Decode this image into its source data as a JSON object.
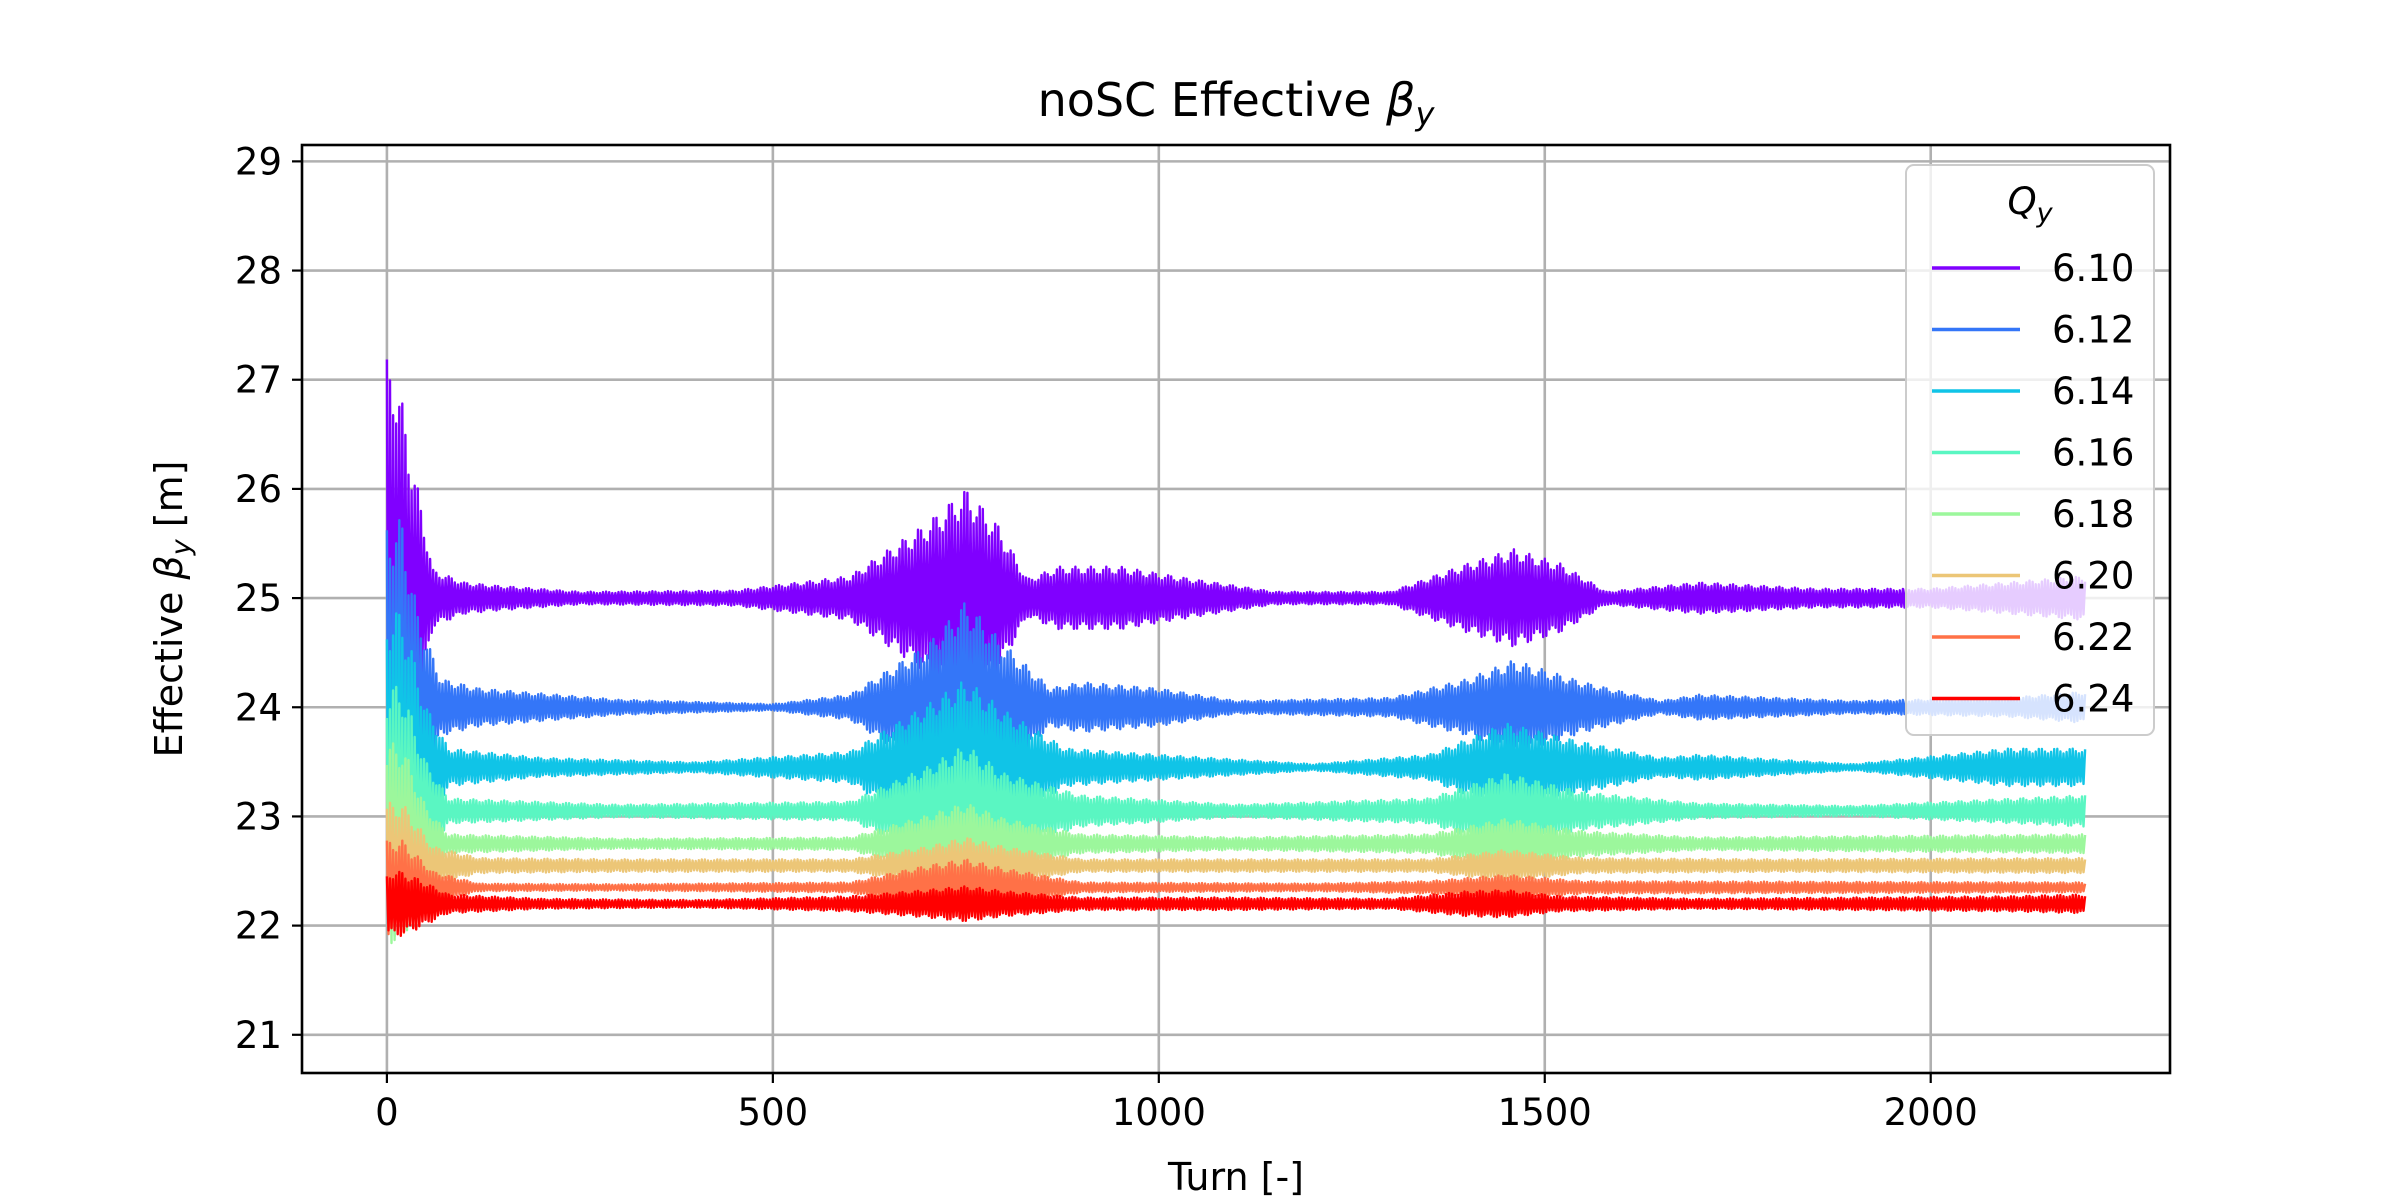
{
  "chart_data": {
    "type": "line",
    "title": "noSC Effective βy",
    "title_main": "noSC Effective ",
    "title_sym": "β",
    "title_sub": "y",
    "xlabel": "Turn [-]",
    "ylabel_main": "Effective ",
    "ylabel_sym": "β",
    "ylabel_sub": "y",
    "ylabel_unit": " [m]",
    "xlim": [
      -110,
      2310
    ],
    "ylim": [
      20.65,
      29.15
    ],
    "xticks": [
      0,
      500,
      1000,
      1500,
      2000
    ],
    "xtick_labels": [
      "0",
      "500",
      "1000",
      "1500",
      "2000"
    ],
    "yticks": [
      21,
      22,
      23,
      24,
      25,
      26,
      27,
      28,
      29
    ],
    "ytick_labels": [
      "21",
      "22",
      "23",
      "24",
      "25",
      "26",
      "27",
      "28",
      "29"
    ],
    "grid": true,
    "legend": {
      "title_sym": "Q",
      "title_sub": "y",
      "placement": "upper-right"
    },
    "turns": 2200,
    "series": [
      {
        "name": "6.10",
        "color": "#8000ff",
        "center": 25.0,
        "env": [
          [
            0,
            3.8
          ],
          [
            10,
            3.8
          ],
          [
            30,
            2.4
          ],
          [
            60,
            0.45
          ],
          [
            100,
            0.25
          ],
          [
            140,
            0.2
          ],
          [
            250,
            0.1
          ],
          [
            450,
            0.12
          ],
          [
            600,
            0.35
          ],
          [
            700,
            1.2
          ],
          [
            750,
            1.75
          ],
          [
            790,
            1.2
          ],
          [
            830,
            0.3
          ],
          [
            870,
            0.5
          ],
          [
            950,
            0.5
          ],
          [
            1020,
            0.35
          ],
          [
            1150,
            0.1
          ],
          [
            1300,
            0.1
          ],
          [
            1400,
            0.55
          ],
          [
            1460,
            0.78
          ],
          [
            1520,
            0.55
          ],
          [
            1580,
            0.1
          ],
          [
            1700,
            0.25
          ],
          [
            1850,
            0.15
          ],
          [
            2000,
            0.15
          ],
          [
            2200,
            0.35
          ]
        ]
      },
      {
        "name": "6.12",
        "color": "#3476f8",
        "center": 24.0,
        "env": [
          [
            0,
            3.0
          ],
          [
            20,
            3.0
          ],
          [
            40,
            1.5
          ],
          [
            70,
            0.45
          ],
          [
            120,
            0.3
          ],
          [
            300,
            0.12
          ],
          [
            500,
            0.05
          ],
          [
            600,
            0.2
          ],
          [
            700,
            1.0
          ],
          [
            750,
            1.7
          ],
          [
            800,
            1.0
          ],
          [
            860,
            0.3
          ],
          [
            900,
            0.4
          ],
          [
            1000,
            0.3
          ],
          [
            1100,
            0.1
          ],
          [
            1300,
            0.15
          ],
          [
            1400,
            0.45
          ],
          [
            1460,
            0.75
          ],
          [
            1550,
            0.4
          ],
          [
            1650,
            0.1
          ],
          [
            1700,
            0.2
          ],
          [
            1900,
            0.1
          ],
          [
            2100,
            0.15
          ],
          [
            2200,
            0.25
          ]
        ]
      },
      {
        "name": "6.14",
        "color": "#10c4e7",
        "center": 23.45,
        "env": [
          [
            0,
            2.5
          ],
          [
            20,
            2.5
          ],
          [
            50,
            1.0
          ],
          [
            80,
            0.3
          ],
          [
            200,
            0.15
          ],
          [
            400,
            0.08
          ],
          [
            600,
            0.25
          ],
          [
            700,
            1.0
          ],
          [
            750,
            1.4
          ],
          [
            800,
            0.9
          ],
          [
            880,
            0.3
          ],
          [
            1000,
            0.2
          ],
          [
            1200,
            0.05
          ],
          [
            1350,
            0.2
          ],
          [
            1450,
            0.7
          ],
          [
            1550,
            0.4
          ],
          [
            1650,
            0.15
          ],
          [
            1700,
            0.2
          ],
          [
            1900,
            0.05
          ],
          [
            2100,
            0.3
          ],
          [
            2200,
            0.3
          ]
        ]
      },
      {
        "name": "6.16",
        "color": "#5af6c2",
        "center": 23.05,
        "env": [
          [
            0,
            2.0
          ],
          [
            20,
            2.0
          ],
          [
            50,
            0.8
          ],
          [
            80,
            0.2
          ],
          [
            300,
            0.1
          ],
          [
            600,
            0.15
          ],
          [
            700,
            0.7
          ],
          [
            750,
            1.05
          ],
          [
            800,
            0.6
          ],
          [
            900,
            0.25
          ],
          [
            1100,
            0.1
          ],
          [
            1350,
            0.2
          ],
          [
            1450,
            0.6
          ],
          [
            1550,
            0.3
          ],
          [
            1700,
            0.12
          ],
          [
            1900,
            0.08
          ],
          [
            2200,
            0.25
          ]
        ]
      },
      {
        "name": "6.18",
        "color": "#9cf79c",
        "center": 22.75,
        "env": [
          [
            0,
            1.6
          ],
          [
            20,
            1.6
          ],
          [
            50,
            0.6
          ],
          [
            80,
            0.15
          ],
          [
            300,
            0.08
          ],
          [
            600,
            0.1
          ],
          [
            700,
            0.45
          ],
          [
            750,
            0.65
          ],
          [
            800,
            0.4
          ],
          [
            900,
            0.15
          ],
          [
            1100,
            0.1
          ],
          [
            1350,
            0.15
          ],
          [
            1450,
            0.4
          ],
          [
            1550,
            0.2
          ],
          [
            1700,
            0.1
          ],
          [
            2200,
            0.15
          ]
        ]
      },
      {
        "name": "6.20",
        "color": "#ecc677",
        "center": 22.55,
        "env": [
          [
            0,
            1.0
          ],
          [
            20,
            1.0
          ],
          [
            60,
            0.3
          ],
          [
            120,
            0.12
          ],
          [
            300,
            0.1
          ],
          [
            600,
            0.1
          ],
          [
            700,
            0.3
          ],
          [
            750,
            0.45
          ],
          [
            800,
            0.3
          ],
          [
            900,
            0.1
          ],
          [
            1200,
            0.1
          ],
          [
            1350,
            0.1
          ],
          [
            1450,
            0.25
          ],
          [
            1550,
            0.12
          ],
          [
            1800,
            0.1
          ],
          [
            2200,
            0.12
          ]
        ]
      },
      {
        "name": "6.22",
        "color": "#ff7147",
        "center": 22.35,
        "env": [
          [
            0,
            0.75
          ],
          [
            20,
            0.75
          ],
          [
            60,
            0.25
          ],
          [
            120,
            0.06
          ],
          [
            300,
            0.05
          ],
          [
            600,
            0.08
          ],
          [
            700,
            0.35
          ],
          [
            750,
            0.45
          ],
          [
            800,
            0.3
          ],
          [
            900,
            0.08
          ],
          [
            1200,
            0.06
          ],
          [
            1350,
            0.1
          ],
          [
            1450,
            0.2
          ],
          [
            1550,
            0.1
          ],
          [
            2200,
            0.08
          ]
        ]
      },
      {
        "name": "6.24",
        "color": "#ff0000",
        "center": 22.2,
        "env": [
          [
            0,
            0.45
          ],
          [
            10,
            0.55
          ],
          [
            40,
            0.4
          ],
          [
            80,
            0.15
          ],
          [
            200,
            0.08
          ],
          [
            400,
            0.06
          ],
          [
            600,
            0.12
          ],
          [
            700,
            0.22
          ],
          [
            750,
            0.28
          ],
          [
            800,
            0.2
          ],
          [
            900,
            0.1
          ],
          [
            1100,
            0.1
          ],
          [
            1300,
            0.08
          ],
          [
            1400,
            0.2
          ],
          [
            1450,
            0.22
          ],
          [
            1520,
            0.12
          ],
          [
            1700,
            0.08
          ],
          [
            2100,
            0.12
          ],
          [
            2200,
            0.15
          ]
        ]
      }
    ]
  }
}
